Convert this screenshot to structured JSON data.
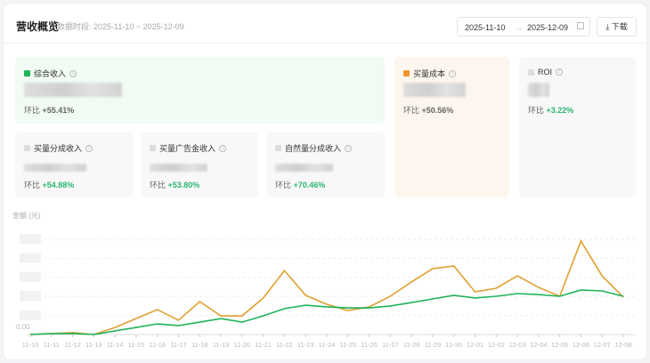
{
  "header": {
    "title": "营收概览",
    "subtitle": "数据时段: 2025-11-10 ~ 2025-12-09",
    "date_start": "2025-11-10",
    "date_arrow": "→",
    "date_end": "2025-12-09",
    "download_label": "下载"
  },
  "metrics": [
    {
      "label": "综合收入",
      "change_label": "环比",
      "change": "+55.41%",
      "color": "#1fb35a",
      "bg": "#f1faf3"
    },
    {
      "label": "买量成本",
      "change_label": "环比",
      "change": "+50.56%",
      "color": "#f0962a",
      "bg": "#fdf6ee"
    },
    {
      "label": "ROI",
      "change_label": "环比",
      "change": "+3.22%",
      "color": "#dddddd",
      "bg": "#f8f8f8"
    },
    {
      "label": "买量分成收入",
      "change_label": "环比",
      "change": "+54.88%",
      "color": "#dddddd",
      "bg": "#f8f8f8"
    },
    {
      "label": "买量广告金收入",
      "change_label": "环比",
      "change": "+53.80%",
      "color": "#dddddd",
      "bg": "#f8f8f8"
    },
    {
      "label": "自然量分成收入",
      "change_label": "环比",
      "change": "+70.46%",
      "color": "#dddddd",
      "bg": "#f8f8f8"
    }
  ],
  "chart_data": {
    "type": "line",
    "ylabel": "金额 (元)",
    "ytick_visible": "0.00",
    "grid": true,
    "ylim": [
      0,
      5
    ],
    "x": [
      "11-10",
      "11-11",
      "11-12",
      "11-13",
      "11-14",
      "11-15",
      "11-16",
      "11-17",
      "11-18",
      "11-19",
      "11-20",
      "11-21",
      "11-22",
      "11-23",
      "11-24",
      "11-25",
      "11-26",
      "11-27",
      "11-28",
      "11-29",
      "11-30",
      "12-01",
      "12-02",
      "12-03",
      "12-04",
      "12-05",
      "12-06",
      "12-07",
      "12-08"
    ],
    "series": [
      {
        "color": "#e0a030",
        "values": [
          0,
          0.05,
          0.1,
          0,
          0.37,
          0.84,
          1.31,
          0.75,
          1.73,
          0.98,
          0.98,
          1.92,
          3.36,
          2.06,
          1.59,
          1.26,
          1.45,
          2.01,
          2.76,
          3.46,
          3.6,
          2.24,
          2.43,
          3.08,
          2.48,
          2.01,
          4.91,
          3.08,
          1.96
        ]
      },
      {
        "color": "#1fb35a",
        "values": [
          0,
          0.05,
          0.05,
          0,
          0.19,
          0.37,
          0.56,
          0.47,
          0.65,
          0.84,
          0.65,
          0.98,
          1.36,
          1.54,
          1.45,
          1.4,
          1.4,
          1.5,
          1.68,
          1.87,
          2.06,
          1.92,
          2.01,
          2.15,
          2.1,
          2.01,
          2.34,
          2.29,
          2.01
        ]
      }
    ]
  }
}
